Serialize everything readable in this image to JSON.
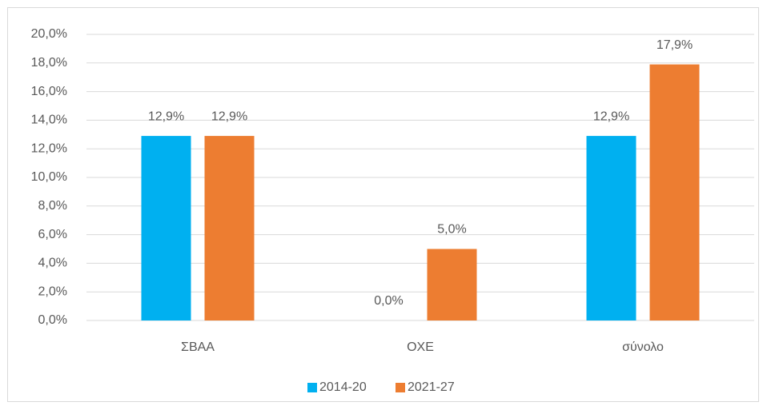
{
  "chart_data": {
    "type": "bar",
    "categories": [
      "ΣΒΑΑ",
      "ΟΧΕ",
      "σύνολο"
    ],
    "series": [
      {
        "name": "2014-20",
        "color": "#00b0f0",
        "values": [
          12.9,
          0,
          12.9
        ],
        "value_labels": [
          "12,9%",
          "0,0%",
          "12,9%"
        ]
      },
      {
        "name": "2021-27",
        "color": "#ed7d31",
        "values": [
          12.9,
          5.0,
          17.9
        ],
        "value_labels": [
          "12,9%",
          "5,0%",
          "17,9%"
        ]
      }
    ],
    "ylim": [
      0,
      20
    ],
    "yticks": [
      {
        "value": 0,
        "label": "0,0%"
      },
      {
        "value": 2,
        "label": "2,0%"
      },
      {
        "value": 4,
        "label": "4,0%"
      },
      {
        "value": 6,
        "label": "6,0%"
      },
      {
        "value": 8,
        "label": "8,0%"
      },
      {
        "value": 10,
        "label": "10,0%"
      },
      {
        "value": 12,
        "label": "12,0%"
      },
      {
        "value": 14,
        "label": "14,0%"
      },
      {
        "value": 16,
        "label": "16,0%"
      },
      {
        "value": 18,
        "label": "18,0%"
      },
      {
        "value": 20,
        "label": "20,0%"
      }
    ],
    "grid": true,
    "legend": "bottom"
  }
}
